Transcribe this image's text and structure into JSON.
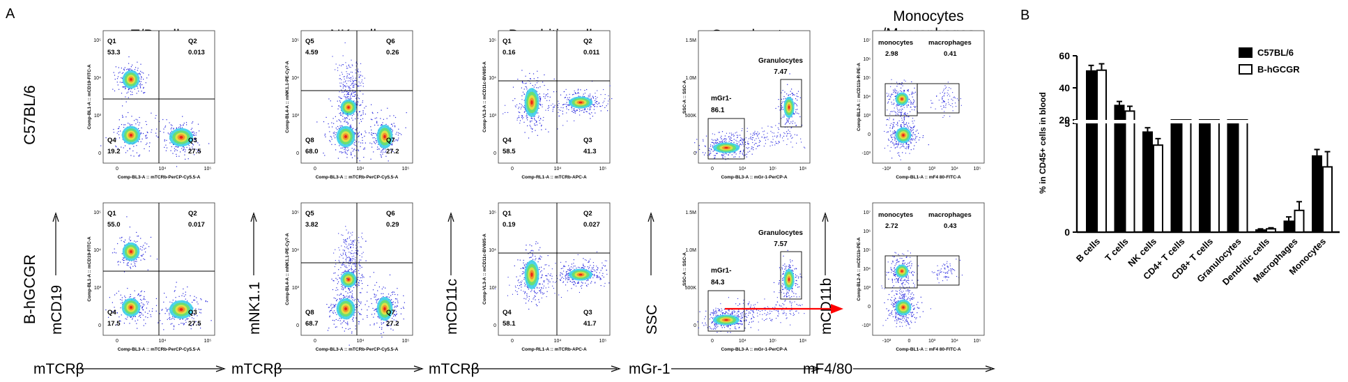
{
  "figure": {
    "panel_a": "A",
    "panel_b": "B",
    "row_labels": [
      "C57BL/6",
      "B-hGCGR"
    ],
    "red_arrow": "#ff0000"
  },
  "flow": {
    "columns": [
      {
        "title": "T/B cells",
        "y_axis": "mCD19",
        "x_axis": "mTCRβ",
        "gate_type": "quad",
        "x_param": "Comp-BL3-A :: mTCRb-PerCP-Cy5.5-A",
        "y_param": "Comp-BL1-A :: mCD19-FITC-A",
        "x_ticks": [
          "0",
          "10⁴",
          "10⁵"
        ],
        "y_ticks": [
          "10⁵",
          "10⁴",
          "10³",
          "0"
        ],
        "rows": [
          {
            "gates": [
              {
                "label": "Q1",
                "value": "53.3"
              },
              {
                "label": "Q2",
                "value": "0.013"
              },
              {
                "label": "Q4",
                "value": "19.2"
              },
              {
                "label": "Q3",
                "value": "27.5"
              }
            ]
          },
          {
            "gates": [
              {
                "label": "Q1",
                "value": "55.0"
              },
              {
                "label": "Q2",
                "value": "0.017"
              },
              {
                "label": "Q4",
                "value": "17.5"
              },
              {
                "label": "Q3",
                "value": "27.5"
              }
            ]
          }
        ]
      },
      {
        "title": "NK cells",
        "y_axis": "mNK1.1",
        "x_axis": "mTCRβ",
        "gate_type": "quad",
        "x_param": "Comp-BL3-A :: mTCRb-PerCP-Cy5.5-A",
        "y_param": "Comp-BL4-A :: mNK1.1-PE-Cy7-A",
        "x_ticks": [
          "0",
          "10⁴",
          "10⁵"
        ],
        "y_ticks": [
          "10⁵",
          "10⁴",
          "10³",
          "0"
        ],
        "rows": [
          {
            "gates": [
              {
                "label": "Q5",
                "value": "4.59"
              },
              {
                "label": "Q6",
                "value": "0.26"
              },
              {
                "label": "Q8",
                "value": "68.0"
              },
              {
                "label": "Q7",
                "value": "27.2"
              }
            ]
          },
          {
            "gates": [
              {
                "label": "Q5",
                "value": "3.82"
              },
              {
                "label": "Q6",
                "value": "0.29"
              },
              {
                "label": "Q8",
                "value": "68.7"
              },
              {
                "label": "Q7",
                "value": "27.2"
              }
            ]
          }
        ]
      },
      {
        "title": "Dendritic cells",
        "y_axis": "mCD11c",
        "x_axis": "mTCRβ",
        "gate_type": "quad",
        "x_param": "Comp-RL1-A :: mTCRb-APC-A",
        "y_param": "Comp-VL3-A :: mCD11c-BV605-A",
        "x_ticks": [
          "0",
          "10⁴",
          "10⁵"
        ],
        "y_ticks": [
          "10⁵",
          "10⁴",
          "10³",
          "0"
        ],
        "rows": [
          {
            "gates": [
              {
                "label": "Q1",
                "value": "0.16"
              },
              {
                "label": "Q2",
                "value": "0.011"
              },
              {
                "label": "Q4",
                "value": "58.5"
              },
              {
                "label": "Q3",
                "value": "41.3"
              }
            ]
          },
          {
            "gates": [
              {
                "label": "Q1",
                "value": "0.19"
              },
              {
                "label": "Q2",
                "value": "0.027"
              },
              {
                "label": "Q4",
                "value": "58.1"
              },
              {
                "label": "Q3",
                "value": "41.7"
              }
            ]
          }
        ]
      },
      {
        "title": "Granulocytes",
        "y_axis": "SSC",
        "x_axis": "mGr-1",
        "gate_type": "granulo",
        "x_param": "Comp-BL3-A :: mGr-1-PerCP-A",
        "y_param": "SSC-A :: SSC-A",
        "x_ticks": [
          "0",
          "10⁴",
          "10⁵",
          "10⁶"
        ],
        "y_ticks": [
          "1.5M",
          "1.0M",
          "500K",
          "0"
        ],
        "rows": [
          {
            "gates": [
              {
                "label": "Granulocytes",
                "value": "7.47"
              },
              {
                "label": "mGr1-",
                "value": "86.1"
              }
            ]
          },
          {
            "gates": [
              {
                "label": "Granulocytes",
                "value": "7.57"
              },
              {
                "label": "mGr1-",
                "value": "84.3"
              }
            ]
          }
        ]
      },
      {
        "title": "Monocytes",
        "title2": "/Macrophages",
        "y_axis": "mCD11b",
        "x_axis": "mF4/80",
        "gate_type": "mono",
        "x_param": "Comp-BL1-A :: mF4 80-FITC-A",
        "y_params": [
          "Comp-BL2-A :: mCD11b-R-PE-A",
          "Comp-BL2-A :: mCD11b-PE-A"
        ],
        "x_ticks": [
          "-10³",
          "0",
          "10³",
          "10⁴",
          "10⁵"
        ],
        "y_ticks": [
          "10⁷",
          "10⁶",
          "10⁵",
          "10⁴",
          "10³",
          "0",
          "-10³"
        ],
        "rows": [
          {
            "gates": [
              {
                "label": "monocytes",
                "value": "2.98"
              },
              {
                "label": "macrophages",
                "value": "0.41"
              }
            ]
          },
          {
            "gates": [
              {
                "label": "monocytes",
                "value": "2.72"
              },
              {
                "label": "macrophages",
                "value": "0.43"
              }
            ]
          }
        ]
      }
    ]
  },
  "chart_data": {
    "type": "bar",
    "title": "",
    "xlabel": "",
    "ylabel": "% in CD45+ cells in blood",
    "categories": [
      "B cells",
      "T cells",
      "NK cells",
      "CD4+ T cells",
      "CD8+ T cells",
      "Granulocytes",
      "Dendritic cells",
      "Macrophages",
      "Monocytes"
    ],
    "series": [
      {
        "name": "C57BL/6",
        "fill": "#000000",
        "values": [
          50.5,
          29.0,
          4.6,
          16.0,
          13.5,
          10.0,
          0.1,
          0.5,
          3.5
        ],
        "errors": [
          3.5,
          2.5,
          0.2,
          1.8,
          1.5,
          1.2,
          0.05,
          0.2,
          0.3
        ]
      },
      {
        "name": "B-hGCGR",
        "fill": "#ffffff",
        "values": [
          51.0,
          25.5,
          4.0,
          13.5,
          14.0,
          11.5,
          0.15,
          1.0,
          3.0
        ],
        "errors": [
          4.0,
          3.0,
          0.3,
          2.0,
          1.6,
          2.0,
          0.05,
          0.4,
          0.7
        ]
      }
    ],
    "y_break": {
      "lower_range": [
        0,
        5
      ],
      "upper_range": [
        20,
        60
      ]
    },
    "y_ticks_lower": [
      0,
      5
    ],
    "y_ticks_upper": [
      20,
      40,
      60
    ],
    "legend_position": "top-right",
    "grid": false
  }
}
